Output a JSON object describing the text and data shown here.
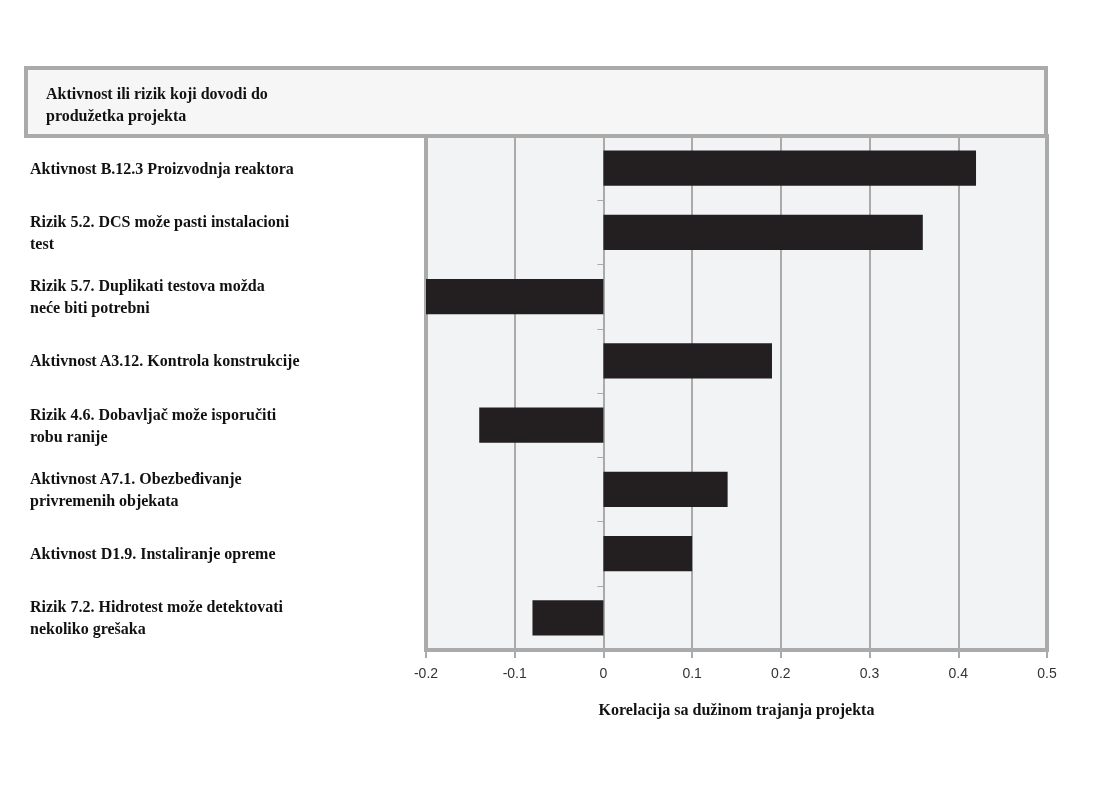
{
  "chart_data": {
    "type": "bar",
    "orientation": "horizontal",
    "ylabel": "Aktivnost ili rizik koji dovodi do produžetka projekta",
    "xlabel": "Korelacija sa dužinom trajanja projekta",
    "categories": [
      "Aktivnost B.12.3 Proizvodnja reaktora",
      "Rizik 5.2. DCS može pasti instalacioni test",
      "Rizik 5.7. Duplikati testova možda neće biti potrebni",
      "Aktivnost A3.12. Kontrola konstrukcije",
      "Rizik 4.6. Dobavljač može isporučiti robu ranije",
      "Aktivnost A7.1. Obezbeđivanje privremenih objekata",
      "Aktivnost D1.9. Instaliranje opreme",
      "Rizik 7.2. Hidrotest može detektovati nekoliko grešaka"
    ],
    "values": [
      0.42,
      0.36,
      -0.2,
      0.19,
      -0.14,
      0.14,
      0.1,
      -0.08
    ],
    "color": "#231f20",
    "xlim": [
      -0.2,
      0.5
    ],
    "xticks": [
      -0.2,
      -0.1,
      0,
      0.1,
      0.2,
      0.3,
      0.4,
      0.5
    ],
    "grid": "x"
  }
}
